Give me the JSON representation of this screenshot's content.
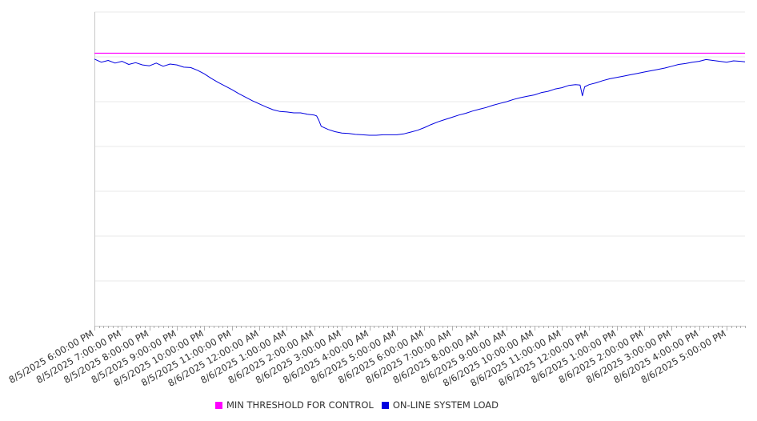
{
  "chart_data": {
    "type": "line",
    "title": "",
    "xlabel": "",
    "ylabel": "",
    "ylim": [
      0,
      7
    ],
    "yticks_visible": false,
    "grid": "horizontal",
    "legend_position": "bottom",
    "x_start": "8/5/2025 6:00:00 PM",
    "x_end": "8/6/2025 5:00:00 PM",
    "tick_labels": [
      "8/5/2025 6:00:00 PM",
      "8/5/2025 7:00:00 PM",
      "8/5/2025 8:00:00 PM",
      "8/5/2025 9:00:00 PM",
      "8/5/2025 10:00:00 PM",
      "8/5/2025 11:00:00 PM",
      "8/6/2025 12:00:00 AM",
      "8/6/2025 1:00:00 AM",
      "8/6/2025 2:00:00 AM",
      "8/6/2025 3:00:00 AM",
      "8/6/2025 4:00:00 AM",
      "8/6/2025 5:00:00 AM",
      "8/6/2025 6:00:00 AM",
      "8/6/2025 7:00:00 AM",
      "8/6/2025 8:00:00 AM",
      "8/6/2025 9:00:00 AM",
      "8/6/2025 10:00:00 AM",
      "8/6/2025 11:00:00 AM",
      "8/6/2025 12:00:00 PM",
      "8/6/2025 1:00:00 PM",
      "8/6/2025 2:00:00 PM",
      "8/6/2025 3:00:00 PM",
      "8/6/2025 4:00:00 PM",
      "8/6/2025 5:00:00 PM"
    ],
    "series": [
      {
        "name": "MIN THRESHOLD FOR CONTROL",
        "color": "#ff00ff",
        "x": [
          "8/5/2025 6:00:00 PM",
          "8/6/2025 5:40:00 PM"
        ],
        "values": [
          6.08,
          6.08
        ]
      },
      {
        "name": "ON-LINE SYSTEM LOAD",
        "color": "#0000e0",
        "x": [
          "8/5/2025 6:00:00 PM",
          "8/5/2025 6:15:00 PM",
          "8/5/2025 6:30:00 PM",
          "8/5/2025 6:45:00 PM",
          "8/5/2025 7:00:00 PM",
          "8/5/2025 7:15:00 PM",
          "8/5/2025 7:30:00 PM",
          "8/5/2025 7:45:00 PM",
          "8/5/2025 8:00:00 PM",
          "8/5/2025 8:15:00 PM",
          "8/5/2025 8:30:00 PM",
          "8/5/2025 8:45:00 PM",
          "8/5/2025 9:00:00 PM",
          "8/5/2025 9:15:00 PM",
          "8/5/2025 9:30:00 PM",
          "8/5/2025 9:45:00 PM",
          "8/5/2025 10:00:00 PM",
          "8/5/2025 10:15:00 PM",
          "8/5/2025 10:30:00 PM",
          "8/5/2025 10:45:00 PM",
          "8/5/2025 11:00:00 PM",
          "8/5/2025 11:15:00 PM",
          "8/5/2025 11:30:00 PM",
          "8/5/2025 11:45:00 PM",
          "8/6/2025 12:00:00 AM",
          "8/6/2025 12:15:00 AM",
          "8/6/2025 12:30:00 AM",
          "8/6/2025 12:45:00 AM",
          "8/6/2025 1:00:00 AM",
          "8/6/2025 1:15:00 AM",
          "8/6/2025 1:30:00 AM",
          "8/6/2025 1:45:00 AM",
          "8/6/2025 2:00:00 AM",
          "8/6/2025 2:05:00 AM",
          "8/6/2025 2:10:00 AM",
          "8/6/2025 2:15:00 AM",
          "8/6/2025 2:30:00 AM",
          "8/6/2025 2:45:00 AM",
          "8/6/2025 3:00:00 AM",
          "8/6/2025 3:15:00 AM",
          "8/6/2025 3:30:00 AM",
          "8/6/2025 3:45:00 AM",
          "8/6/2025 4:00:00 AM",
          "8/6/2025 4:15:00 AM",
          "8/6/2025 4:30:00 AM",
          "8/6/2025 4:45:00 AM",
          "8/6/2025 5:00:00 AM",
          "8/6/2025 5:15:00 AM",
          "8/6/2025 5:30:00 AM",
          "8/6/2025 5:45:00 AM",
          "8/6/2025 6:00:00 AM",
          "8/6/2025 6:15:00 AM",
          "8/6/2025 6:30:00 AM",
          "8/6/2025 6:45:00 AM",
          "8/6/2025 7:00:00 AM",
          "8/6/2025 7:15:00 AM",
          "8/6/2025 7:30:00 AM",
          "8/6/2025 7:45:00 AM",
          "8/6/2025 8:00:00 AM",
          "8/6/2025 8:15:00 AM",
          "8/6/2025 8:30:00 AM",
          "8/6/2025 8:45:00 AM",
          "8/6/2025 9:00:00 AM",
          "8/6/2025 9:15:00 AM",
          "8/6/2025 9:30:00 AM",
          "8/6/2025 9:45:00 AM",
          "8/6/2025 10:00:00 AM",
          "8/6/2025 10:15:00 AM",
          "8/6/2025 10:30:00 AM",
          "8/6/2025 10:45:00 AM",
          "8/6/2025 11:00:00 AM",
          "8/6/2025 11:15:00 AM",
          "8/6/2025 11:30:00 AM",
          "8/6/2025 11:40:00 AM",
          "8/6/2025 11:45:00 AM",
          "8/6/2025 11:50:00 AM",
          "8/6/2025 12:00:00 PM",
          "8/6/2025 12:15:00 PM",
          "8/6/2025 12:30:00 PM",
          "8/6/2025 12:45:00 PM",
          "8/6/2025 1:00:00 PM",
          "8/6/2025 1:15:00 PM",
          "8/6/2025 1:30:00 PM",
          "8/6/2025 1:45:00 PM",
          "8/6/2025 2:00:00 PM",
          "8/6/2025 2:15:00 PM",
          "8/6/2025 2:30:00 PM",
          "8/6/2025 2:45:00 PM",
          "8/6/2025 3:00:00 PM",
          "8/6/2025 3:15:00 PM",
          "8/6/2025 3:30:00 PM",
          "8/6/2025 3:45:00 PM",
          "8/6/2025 4:00:00 PM",
          "8/6/2025 4:15:00 PM",
          "8/6/2025 4:30:00 PM",
          "8/6/2025 4:45:00 PM",
          "8/6/2025 5:00:00 PM",
          "8/6/2025 5:15:00 PM",
          "8/6/2025 5:30:00 PM",
          "8/6/2025 5:40:00 PM"
        ],
        "values": [
          5.95,
          5.88,
          5.92,
          5.86,
          5.9,
          5.83,
          5.87,
          5.82,
          5.8,
          5.86,
          5.79,
          5.84,
          5.82,
          5.77,
          5.76,
          5.7,
          5.62,
          5.52,
          5.43,
          5.35,
          5.27,
          5.18,
          5.1,
          5.02,
          4.95,
          4.88,
          4.82,
          4.78,
          4.77,
          4.75,
          4.75,
          4.72,
          4.7,
          4.68,
          4.58,
          4.45,
          4.38,
          4.33,
          4.3,
          4.29,
          4.27,
          4.26,
          4.25,
          4.25,
          4.26,
          4.26,
          4.26,
          4.28,
          4.32,
          4.36,
          4.42,
          4.49,
          4.55,
          4.6,
          4.65,
          4.7,
          4.74,
          4.79,
          4.83,
          4.87,
          4.92,
          4.96,
          5.0,
          5.05,
          5.09,
          5.12,
          5.15,
          5.2,
          5.23,
          5.28,
          5.31,
          5.36,
          5.38,
          5.37,
          5.13,
          5.33,
          5.38,
          5.42,
          5.47,
          5.51,
          5.54,
          5.57,
          5.6,
          5.63,
          5.66,
          5.69,
          5.72,
          5.75,
          5.79,
          5.83,
          5.85,
          5.88,
          5.9,
          5.94,
          5.92,
          5.9,
          5.88,
          5.91,
          5.9,
          5.89
        ]
      }
    ]
  }
}
